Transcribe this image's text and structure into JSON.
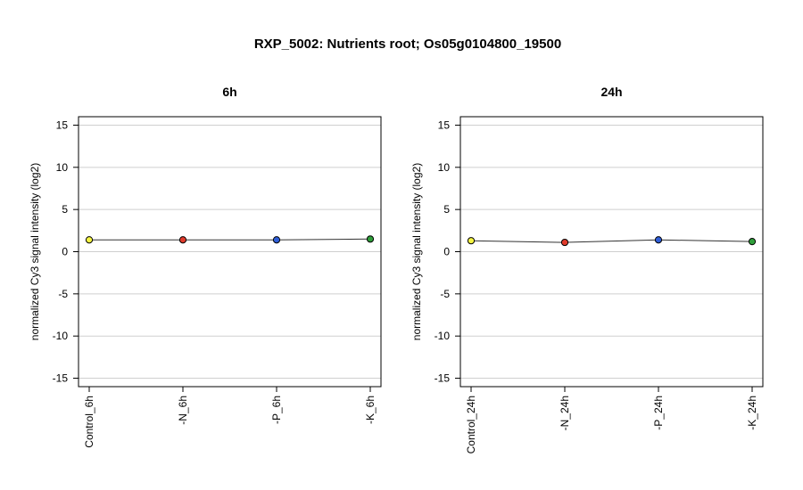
{
  "title": "RXP_5002: Nutrients root; Os05g0104800_19500",
  "chart_data": [
    {
      "type": "line",
      "title": "6h",
      "ylabel": "normalized Cy3 signal intensity (log2)",
      "ylim": [
        -16,
        16
      ],
      "yticks": [
        -15,
        -10,
        -5,
        0,
        5,
        10,
        15
      ],
      "grid": true,
      "categories": [
        "Control_6h",
        "-N_6h",
        "-P_6h",
        "-K_6h"
      ],
      "values": [
        1.4,
        1.4,
        1.4,
        1.5
      ],
      "point_colors": [
        "#f5f542",
        "#e03a2b",
        "#2f5ed8",
        "#2f9e3a"
      ]
    },
    {
      "type": "line",
      "title": "24h",
      "ylabel": "normalized Cy3 signal intensity (log2)",
      "ylim": [
        -16,
        16
      ],
      "yticks": [
        -15,
        -10,
        -5,
        0,
        5,
        10,
        15
      ],
      "grid": true,
      "categories": [
        "Control_24h",
        "-N_24h",
        "-P_24h",
        "-K_24h"
      ],
      "values": [
        1.3,
        1.1,
        1.4,
        1.2
      ],
      "point_colors": [
        "#f5f542",
        "#e03a2b",
        "#2f5ed8",
        "#2f9e3a"
      ]
    }
  ]
}
